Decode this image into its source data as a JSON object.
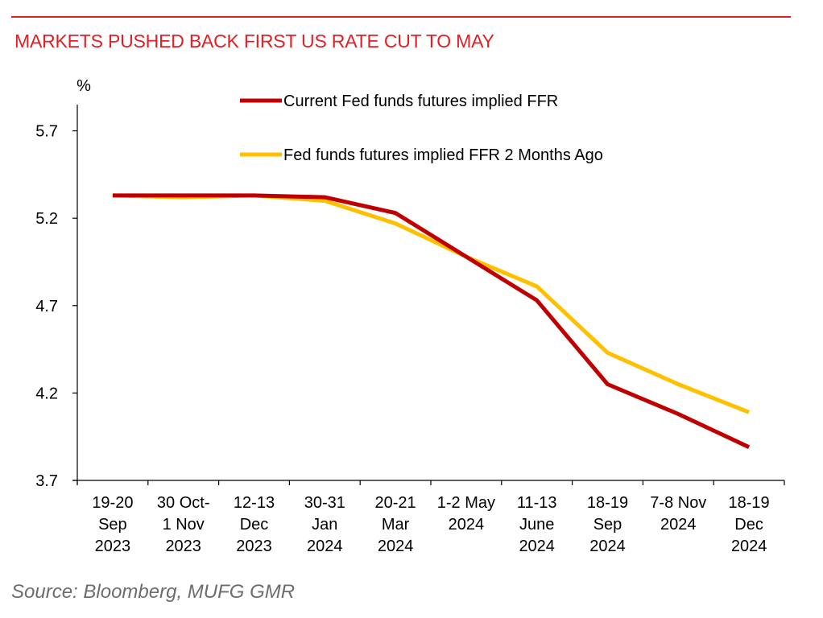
{
  "header": {
    "title": "MARKETS PUSHED BACK FIRST US RATE CUT TO MAY"
  },
  "footer": {
    "source": "Source: Bloomberg, MUFG GMR"
  },
  "colors": {
    "accent": "#e31e24",
    "series_current": "#c00000",
    "series_prior": "#ffc000",
    "source_text": "#6d6d6d"
  },
  "chart_data": {
    "type": "line",
    "ylabel": "%",
    "xlabel": "",
    "ylim": [
      3.7,
      5.85
    ],
    "yticks": [
      "5.7",
      "5.2",
      "4.7",
      "4.2",
      "3.7"
    ],
    "grid": false,
    "legend_position": "top-right",
    "categories": [
      [
        "19-20",
        "Sep",
        "2023"
      ],
      [
        "30 Oct-",
        "1 Nov",
        "2023"
      ],
      [
        "12-13",
        "Dec",
        "2023"
      ],
      [
        "30-31",
        "Jan",
        "2024"
      ],
      [
        "20-21",
        "Mar",
        "2024"
      ],
      [
        "1-2 May",
        "2024"
      ],
      [
        "11-13",
        "June",
        "2024"
      ],
      [
        "18-19",
        "Sep",
        "2024"
      ],
      [
        "7-8 Nov",
        "2024"
      ],
      [
        "18-19",
        "Dec",
        "2024"
      ]
    ],
    "series": [
      {
        "name": "Current Fed funds futures implied FFR",
        "color": "#c00000",
        "values": [
          5.33,
          5.33,
          5.33,
          5.32,
          5.23,
          4.98,
          4.73,
          4.25,
          4.08,
          3.89
        ]
      },
      {
        "name": "Fed funds futures implied FFR 2 Months Ago",
        "color": "#ffc000",
        "values": [
          5.33,
          5.32,
          5.33,
          5.3,
          5.17,
          4.98,
          4.81,
          4.43,
          4.25,
          4.09
        ]
      }
    ]
  }
}
